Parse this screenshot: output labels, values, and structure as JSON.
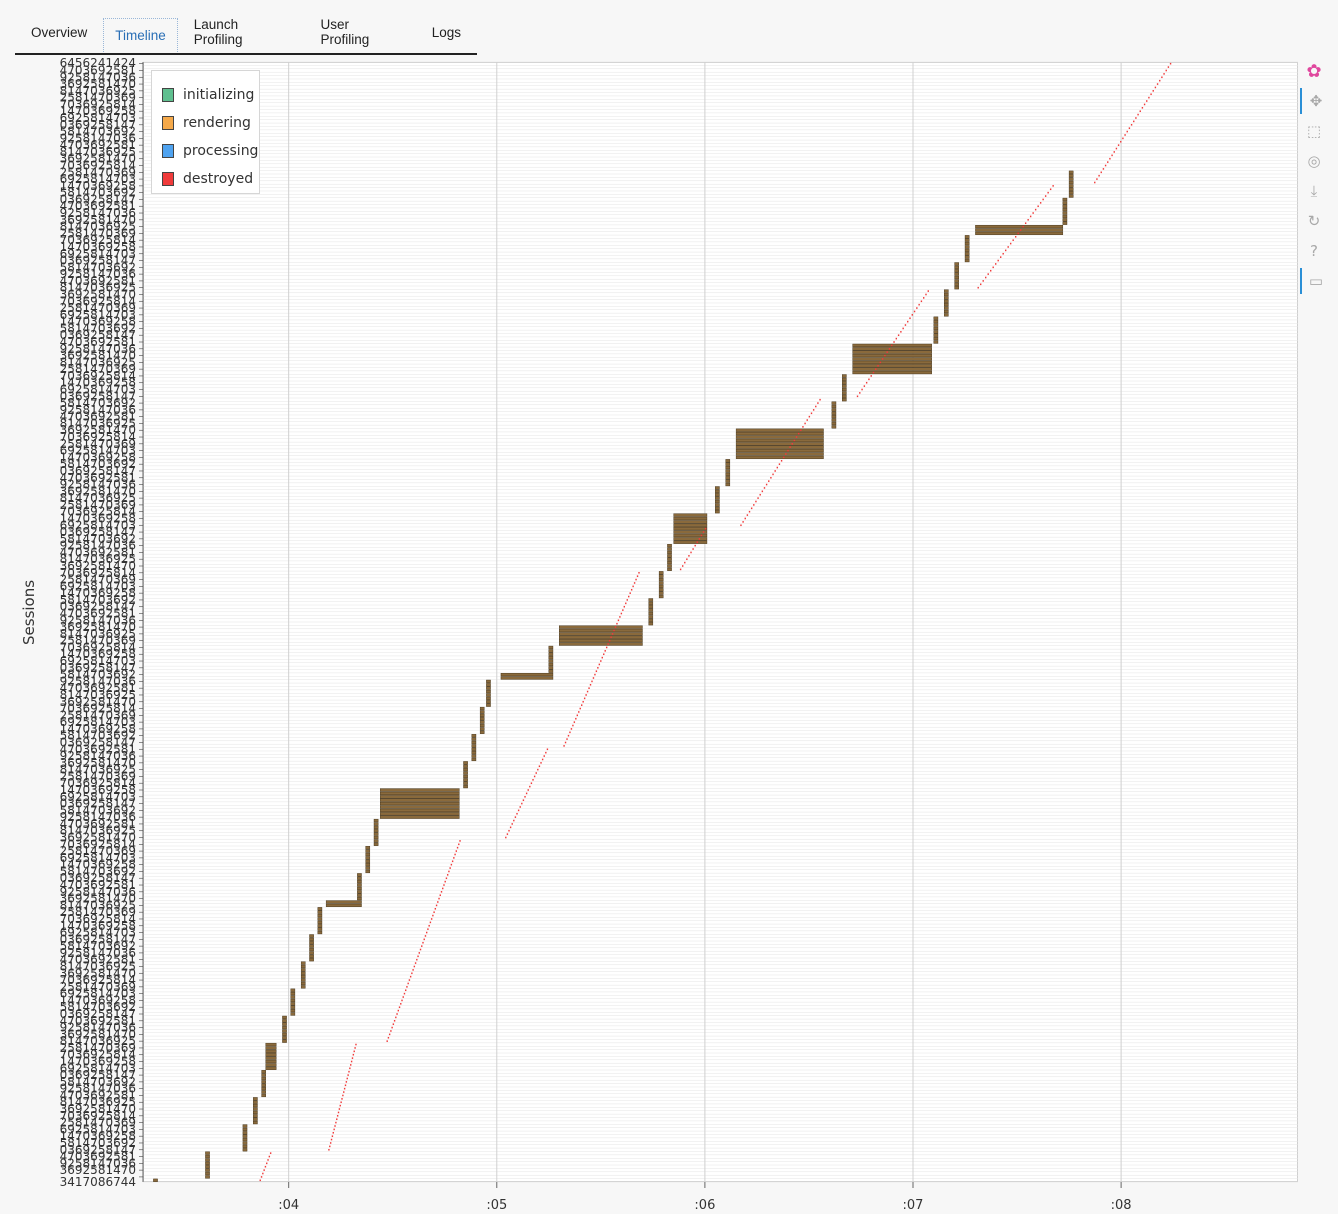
{
  "tabs": [
    {
      "label": "Overview",
      "active": false
    },
    {
      "label": "Timeline",
      "active": true
    },
    {
      "label": "Launch Profiling",
      "active": false
    },
    {
      "label": "User Profiling",
      "active": false
    },
    {
      "label": "Logs",
      "active": false
    }
  ],
  "legend": [
    {
      "label": "initializing",
      "color": "#5fbf8f"
    },
    {
      "label": "rendering",
      "color": "#f5a94a"
    },
    {
      "label": "processing",
      "color": "#4fa3f0"
    },
    {
      "label": "destroyed",
      "color": "#f03b3b"
    }
  ],
  "toolbar": [
    {
      "icon": "bokeh-logo-icon",
      "glyph": "✿"
    },
    {
      "icon": "pan-icon",
      "glyph": "✥"
    },
    {
      "icon": "box-zoom-icon",
      "glyph": "⬚"
    },
    {
      "icon": "wheel-zoom-icon",
      "glyph": "◎"
    },
    {
      "icon": "save-icon",
      "glyph": "⤓"
    },
    {
      "icon": "reset-icon",
      "glyph": "↻"
    },
    {
      "icon": "help-icon",
      "glyph": "?"
    },
    {
      "icon": "hover-icon",
      "glyph": "▭"
    }
  ],
  "chart_data": {
    "type": "timeline",
    "ylabel": "Sessions",
    "xlabel": "",
    "xlim": [
      3.3,
      8.85
    ],
    "x_ticks": [
      {
        "value": 4,
        "label": ":04"
      },
      {
        "value": 5,
        "label": ":05"
      },
      {
        "value": 6,
        "label": ":06"
      },
      {
        "value": 7,
        "label": ":07"
      },
      {
        "value": 8,
        "label": ":08"
      }
    ],
    "y_ticks_visible": {
      "top": "6456241424",
      "bottom": "3417086744"
    },
    "session_count": 330,
    "bar_color": "#8a6a3c",
    "steps": [
      {
        "x": 3.35,
        "w": 0.02,
        "n": 1
      },
      {
        "x": 3.6,
        "w": 0.02,
        "n": 8
      },
      {
        "x": 3.78,
        "w": 0.02,
        "n": 8
      },
      {
        "x": 3.83,
        "w": 0.02,
        "n": 8
      },
      {
        "x": 3.87,
        "w": 0.02,
        "n": 8
      },
      {
        "x": 3.89,
        "w": 0.05,
        "n": 8
      },
      {
        "x": 3.97,
        "w": 0.02,
        "n": 8
      },
      {
        "x": 4.01,
        "w": 0.02,
        "n": 8
      },
      {
        "x": 4.06,
        "w": 0.02,
        "n": 8
      },
      {
        "x": 4.1,
        "w": 0.02,
        "n": 8
      },
      {
        "x": 4.14,
        "w": 0.02,
        "n": 8
      },
      {
        "x": 4.18,
        "w": 0.17,
        "n": 2
      },
      {
        "x": 4.33,
        "w": 0.02,
        "n": 8
      },
      {
        "x": 4.37,
        "w": 0.02,
        "n": 8
      },
      {
        "x": 4.41,
        "w": 0.02,
        "n": 8
      },
      {
        "x": 4.44,
        "w": 0.38,
        "n": 9
      },
      {
        "x": 4.84,
        "w": 0.02,
        "n": 8
      },
      {
        "x": 4.88,
        "w": 0.02,
        "n": 8
      },
      {
        "x": 4.92,
        "w": 0.02,
        "n": 8
      },
      {
        "x": 4.95,
        "w": 0.02,
        "n": 8
      },
      {
        "x": 5.02,
        "w": 0.25,
        "n": 2
      },
      {
        "x": 5.25,
        "w": 0.02,
        "n": 8
      },
      {
        "x": 5.3,
        "w": 0.4,
        "n": 6
      },
      {
        "x": 5.73,
        "w": 0.02,
        "n": 8
      },
      {
        "x": 5.78,
        "w": 0.02,
        "n": 8
      },
      {
        "x": 5.82,
        "w": 0.02,
        "n": 8
      },
      {
        "x": 5.85,
        "w": 0.16,
        "n": 9
      },
      {
        "x": 6.05,
        "w": 0.02,
        "n": 8
      },
      {
        "x": 6.1,
        "w": 0.02,
        "n": 8
      },
      {
        "x": 6.15,
        "w": 0.42,
        "n": 9
      },
      {
        "x": 6.61,
        "w": 0.02,
        "n": 8
      },
      {
        "x": 6.66,
        "w": 0.02,
        "n": 8
      },
      {
        "x": 6.71,
        "w": 0.38,
        "n": 9
      },
      {
        "x": 7.1,
        "w": 0.02,
        "n": 8
      },
      {
        "x": 7.15,
        "w": 0.02,
        "n": 8
      },
      {
        "x": 7.2,
        "w": 0.02,
        "n": 8
      },
      {
        "x": 7.25,
        "w": 0.02,
        "n": 8
      },
      {
        "x": 7.3,
        "w": 0.42,
        "n": 3
      },
      {
        "x": 7.72,
        "w": 0.02,
        "n": 8
      },
      {
        "x": 7.75,
        "w": 0.02,
        "n": 8
      }
    ],
    "destroyed_segments": [
      {
        "x1": 3.86,
        "x2": 3.91,
        "n": 9
      },
      {
        "x1": 4.19,
        "x2": 4.32,
        "n": 32
      },
      {
        "x1": 4.47,
        "x2": 4.82,
        "n": 60
      },
      {
        "x1": 5.04,
        "x2": 5.24,
        "n": 27
      },
      {
        "x1": 5.32,
        "x2": 5.68,
        "n": 52
      },
      {
        "x1": 5.88,
        "x2": 6.0,
        "n": 13
      },
      {
        "x1": 6.17,
        "x2": 6.55,
        "n": 38
      },
      {
        "x1": 6.73,
        "x2": 7.07,
        "n": 32
      },
      {
        "x1": 7.31,
        "x2": 7.67,
        "n": 31
      },
      {
        "x1": 7.87,
        "x2": 8.38,
        "n": 50
      },
      {
        "x1": 8.42,
        "x2": 8.6,
        "n": 17
      }
    ]
  }
}
